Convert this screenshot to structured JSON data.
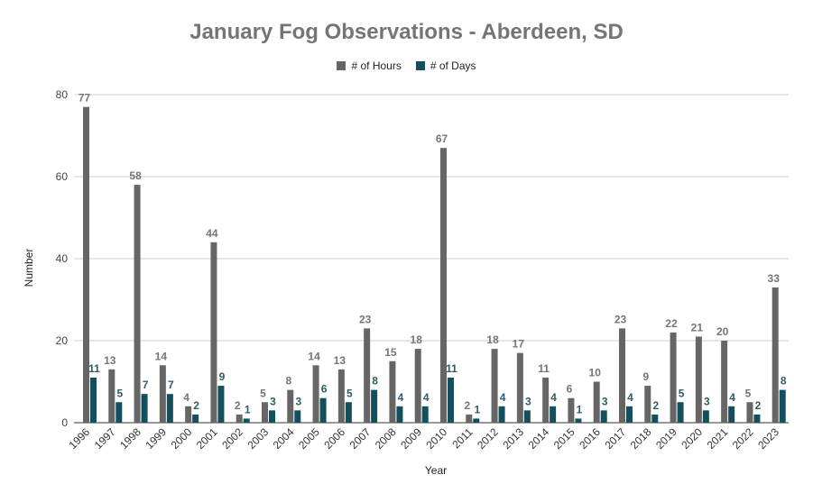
{
  "chart_data": {
    "type": "bar",
    "title": "January Fog Observations - Aberdeen, SD",
    "xlabel": "Year",
    "ylabel": "Number",
    "ylim": [
      0,
      80
    ],
    "yticks": [
      0,
      20,
      40,
      60,
      80
    ],
    "grid": true,
    "legend_position": "top",
    "categories": [
      "1996",
      "1997",
      "1998",
      "1999",
      "2000",
      "2001",
      "2002",
      "2003",
      "2004",
      "2005",
      "2006",
      "2007",
      "2008",
      "2009",
      "2010",
      "2011",
      "2012",
      "2013",
      "2014",
      "2015",
      "2016",
      "2017",
      "2018",
      "2019",
      "2020",
      "2021",
      "2022",
      "2023"
    ],
    "series": [
      {
        "name": "# of Hours",
        "color": "#666666",
        "label_color": "#757575",
        "values": [
          77,
          13,
          58,
          14,
          4,
          44,
          2,
          5,
          8,
          14,
          13,
          23,
          15,
          18,
          67,
          2,
          18,
          17,
          11,
          6,
          10,
          23,
          9,
          22,
          21,
          20,
          5,
          33
        ]
      },
      {
        "name": "# of Days",
        "color": "#134f5c",
        "label_color": "#2d5d69",
        "values": [
          11,
          5,
          7,
          7,
          2,
          9,
          1,
          3,
          3,
          6,
          5,
          8,
          4,
          4,
          11,
          1,
          4,
          3,
          4,
          1,
          3,
          4,
          2,
          5,
          3,
          4,
          2,
          8
        ]
      }
    ]
  }
}
